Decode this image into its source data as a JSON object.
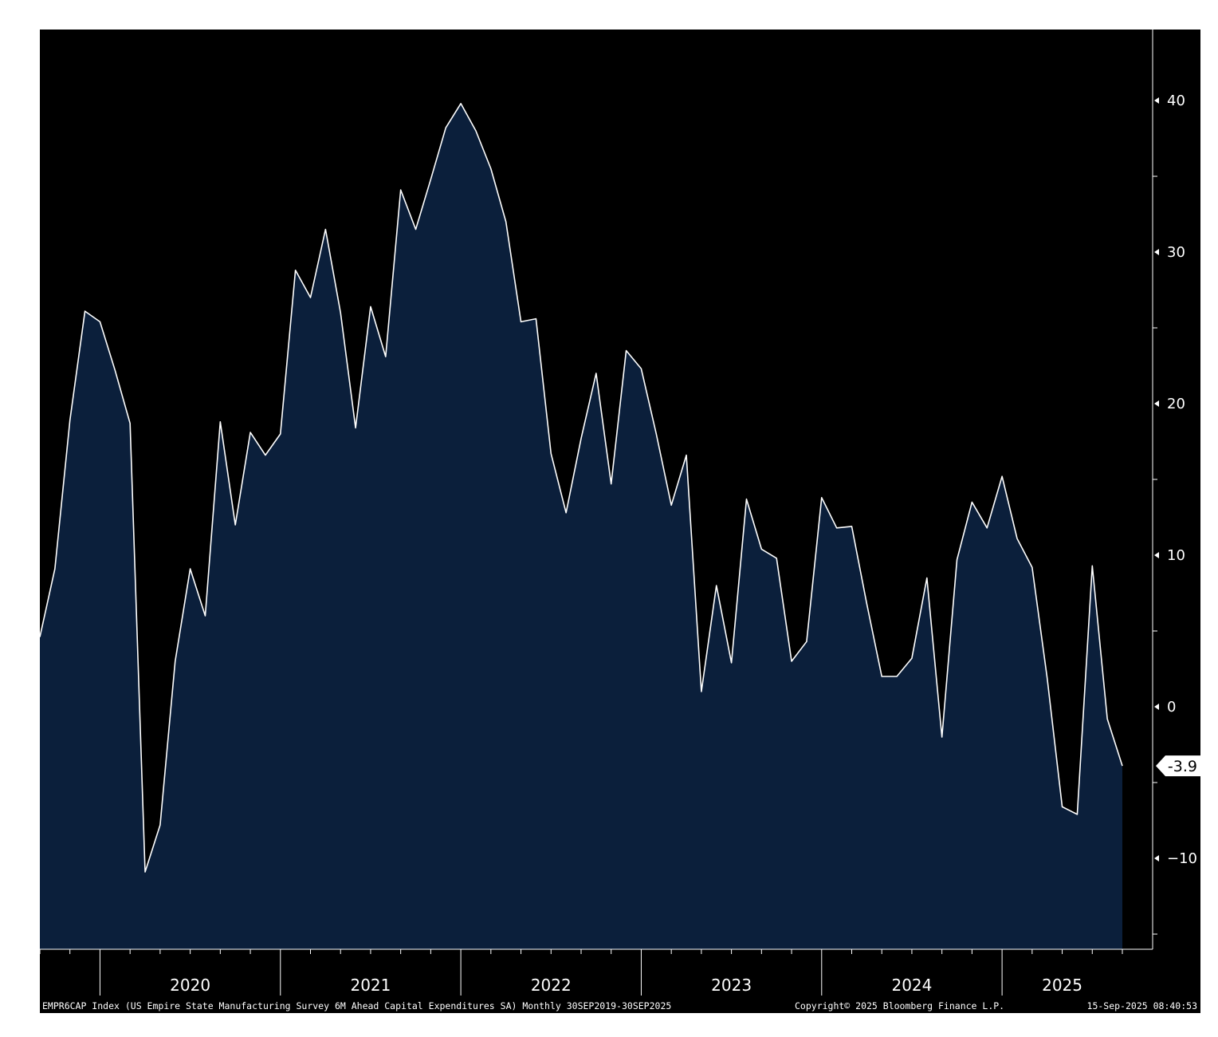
{
  "chart_data": {
    "type": "area",
    "title": "",
    "xlabel": "",
    "ylabel": "",
    "ylim": [
      -16,
      45
    ],
    "y_ticks": [
      -10,
      0,
      10,
      20,
      30,
      40
    ],
    "x_range": [
      "2019-09",
      "2025-09"
    ],
    "year_labels": [
      "2020",
      "2021",
      "2022",
      "2023",
      "2024",
      "2025"
    ],
    "grid": false,
    "colors": {
      "background": "#000000",
      "fill": "#0b1f3b",
      "line": "#ffffff",
      "axis": "#ffffff"
    },
    "series": [
      {
        "name": "EMPR6CAP Index",
        "x": [
          "2019-09",
          "2019-10",
          "2019-11",
          "2019-12",
          "2020-01",
          "2020-02",
          "2020-03",
          "2020-04",
          "2020-05",
          "2020-06",
          "2020-07",
          "2020-08",
          "2020-09",
          "2020-10",
          "2020-11",
          "2020-12",
          "2021-01",
          "2021-02",
          "2021-03",
          "2021-04",
          "2021-05",
          "2021-06",
          "2021-07",
          "2021-08",
          "2021-09",
          "2021-10",
          "2021-11",
          "2021-12",
          "2022-01",
          "2022-02",
          "2022-03",
          "2022-04",
          "2022-05",
          "2022-06",
          "2022-07",
          "2022-08",
          "2022-09",
          "2022-10",
          "2022-11",
          "2022-12",
          "2023-01",
          "2023-02",
          "2023-03",
          "2023-04",
          "2023-05",
          "2023-06",
          "2023-07",
          "2023-08",
          "2023-09",
          "2023-10",
          "2023-11",
          "2023-12",
          "2024-01",
          "2024-02",
          "2024-03",
          "2024-04",
          "2024-05",
          "2024-06",
          "2024-07",
          "2024-08",
          "2024-09",
          "2024-10",
          "2024-11",
          "2024-12",
          "2025-01",
          "2025-02",
          "2025-03",
          "2025-04",
          "2025-05",
          "2025-06",
          "2025-07",
          "2025-08",
          "2025-09"
        ],
        "values": [
          4.6,
          9.1,
          18.9,
          26.1,
          25.4,
          22.2,
          18.7,
          -10.9,
          -7.8,
          3.0,
          9.1,
          6.0,
          18.8,
          12.0,
          18.1,
          16.6,
          18.0,
          28.8,
          27.0,
          31.5,
          26.0,
          18.4,
          26.4,
          23.1,
          34.1,
          31.5,
          34.8,
          38.2,
          39.8,
          38.0,
          35.5,
          32.0,
          25.4,
          25.6,
          16.7,
          12.8,
          17.7,
          22.0,
          14.7,
          23.5,
          22.3,
          18.0,
          13.3,
          16.6,
          1.0,
          8.0,
          2.9,
          13.7,
          10.4,
          9.8,
          3.0,
          4.3,
          13.8,
          11.8,
          11.9,
          6.8,
          2.0,
          2.0,
          3.2,
          8.5,
          -2.0,
          9.7,
          13.5,
          11.8,
          15.2,
          11.1,
          9.2,
          1.9,
          -6.6,
          -7.1,
          9.3,
          -0.8,
          -3.9
        ]
      }
    ],
    "last_value_label": "-3.9"
  },
  "footer": {
    "description": "EMPR6CAP Index (US Empire State Manufacturing Survey 6M Ahead Capital Expenditures SA)  Monthly 30SEP2019-30SEP2025",
    "copyright": "Copyright© 2025 Bloomberg Finance L.P.",
    "timestamp": "15-Sep-2025 08:40:53"
  }
}
